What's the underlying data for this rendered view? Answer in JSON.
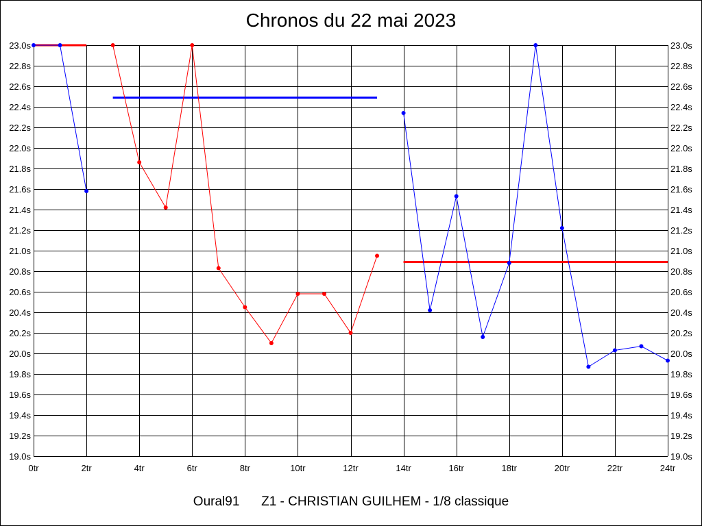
{
  "footer": {
    "user": "Oural91",
    "description": "Z1 - CHRISTIAN GUILHEM - 1/8 classique"
  },
  "colors": {
    "series_red": "#ff0000",
    "series_blue": "#0000ff",
    "grid": "#000000",
    "background": "#ffffff"
  },
  "chart_data": {
    "type": "line",
    "title": "Chronos du 22 mai 2023",
    "xlabel": "",
    "ylabel": "",
    "x_unit_suffix": "tr",
    "y_unit_suffix": "s",
    "xlim": [
      0,
      24
    ],
    "ylim": [
      19.0,
      23.0
    ],
    "x_ticks": [
      0,
      2,
      4,
      6,
      8,
      10,
      12,
      14,
      16,
      18,
      20,
      22,
      24
    ],
    "x_tick_labels": [
      "0tr",
      "2tr",
      "4tr",
      "6tr",
      "8tr",
      "10tr",
      "12tr",
      "14tr",
      "16tr",
      "18tr",
      "20tr",
      "22tr",
      "24tr"
    ],
    "y_ticks": [
      19.0,
      19.2,
      19.4,
      19.6,
      19.8,
      20.0,
      20.2,
      20.4,
      20.6,
      20.8,
      21.0,
      21.2,
      21.4,
      21.6,
      21.8,
      22.0,
      22.2,
      22.4,
      22.6,
      22.8,
      23.0
    ],
    "y_tick_labels": [
      "19.0s",
      "19.2s",
      "19.4s",
      "19.6s",
      "19.8s",
      "20.0s",
      "20.2s",
      "20.4s",
      "20.6s",
      "20.8s",
      "21.0s",
      "21.2s",
      "21.4s",
      "21.6s",
      "21.8s",
      "22.0s",
      "22.2s",
      "22.4s",
      "22.6s",
      "22.8s",
      "23.0s"
    ],
    "grid": true,
    "right_axis_labels": true,
    "series": [
      {
        "color": "#0000ff",
        "x": [
          0,
          1,
          2
        ],
        "y": [
          23.0,
          23.0,
          21.58
        ]
      },
      {
        "color": "#ff0000",
        "x": [
          3,
          4,
          5,
          6,
          7,
          8,
          9,
          10,
          11,
          12,
          13
        ],
        "y": [
          23.0,
          21.86,
          21.42,
          23.0,
          20.83,
          20.45,
          20.1,
          20.58,
          20.58,
          20.2,
          20.95
        ]
      },
      {
        "color": "#0000ff",
        "x": [
          14,
          15,
          16,
          17,
          18,
          19,
          20,
          21,
          22,
          23,
          24
        ],
        "y": [
          22.34,
          20.42,
          21.53,
          20.16,
          20.88,
          23.0,
          21.22,
          19.87,
          20.03,
          20.07,
          19.93
        ]
      }
    ],
    "reference_lines": [
      {
        "color": "#ff0000",
        "x": [
          0,
          2
        ],
        "y": 23.0
      },
      {
        "color": "#0000ff",
        "x": [
          3,
          13
        ],
        "y": 22.49
      },
      {
        "color": "#ff0000",
        "x": [
          14,
          24
        ],
        "y": 20.89
      }
    ]
  }
}
